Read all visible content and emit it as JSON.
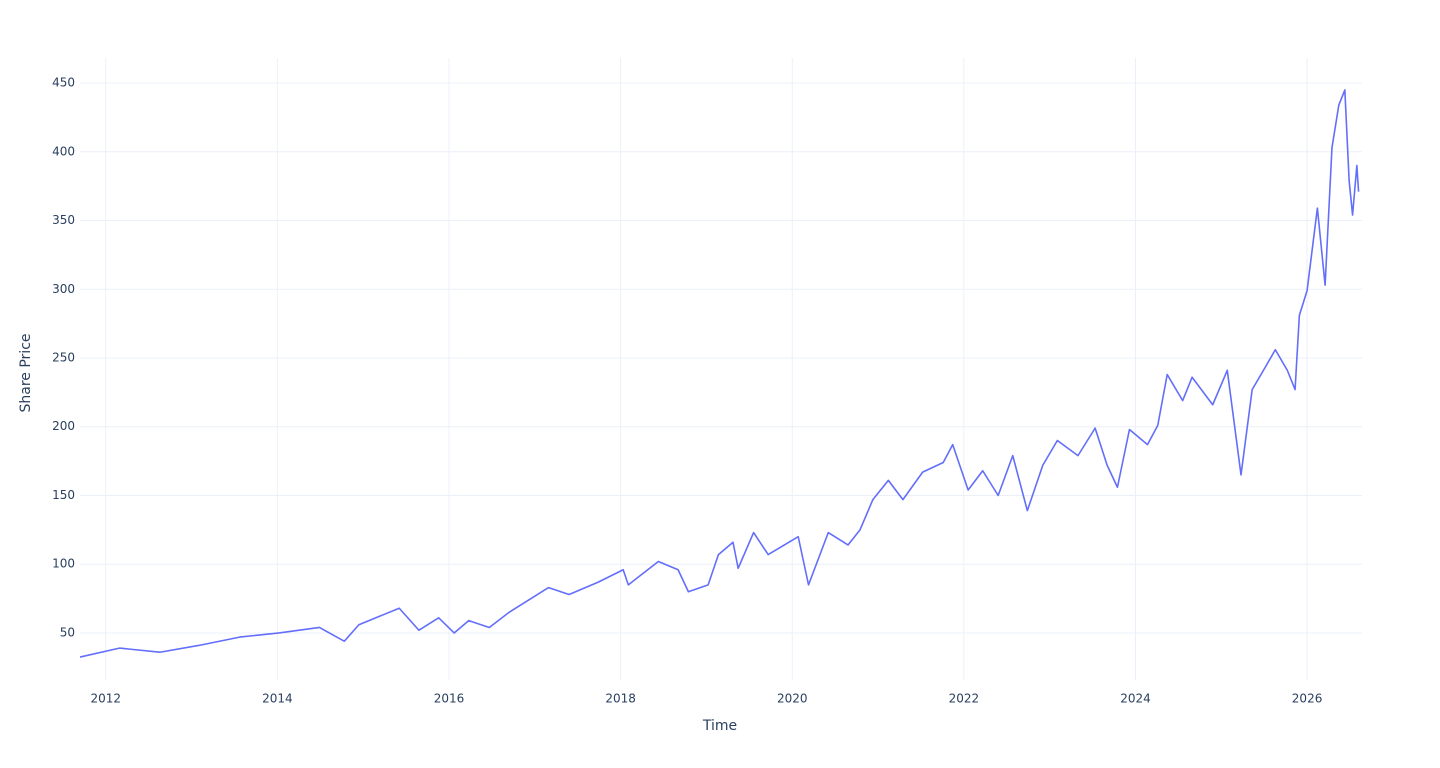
{
  "chart_data": {
    "type": "line",
    "x_label": "Time",
    "y_label": "Share Price",
    "x": [
      2011.7,
      2012.16,
      2012.63,
      2013.09,
      2013.56,
      2014.02,
      2014.49,
      2014.78,
      2014.95,
      2015.42,
      2015.65,
      2015.88,
      2016.06,
      2016.23,
      2016.47,
      2016.7,
      2016.93,
      2017.16,
      2017.4,
      2017.74,
      2018.03,
      2018.09,
      2018.44,
      2018.67,
      2018.79,
      2019.02,
      2019.14,
      2019.31,
      2019.37,
      2019.55,
      2019.72,
      2020.07,
      2020.19,
      2020.42,
      2020.65,
      2020.79,
      2020.94,
      2021.12,
      2021.29,
      2021.52,
      2021.76,
      2021.87,
      2022.05,
      2022.22,
      2022.4,
      2022.57,
      2022.74,
      2022.92,
      2023.09,
      2023.33,
      2023.53,
      2023.67,
      2023.79,
      2023.93,
      2024.14,
      2024.26,
      2024.37,
      2024.55,
      2024.66,
      2024.9,
      2025.07,
      2025.23,
      2025.36,
      2025.51,
      2025.63,
      2025.77,
      2025.86,
      2025.91,
      2026.0,
      2026.12,
      2026.21,
      2026.29,
      2026.37,
      2026.44,
      2026.49,
      2026.53,
      2026.58,
      2026.6
    ],
    "values": [
      32.5,
      39,
      36,
      41,
      47,
      50,
      54,
      44,
      56,
      68,
      52,
      61,
      50,
      59,
      54,
      65,
      74,
      83,
      78,
      87,
      96,
      85,
      102,
      96,
      80,
      85,
      107,
      116,
      97,
      123,
      107,
      120,
      85,
      123,
      114,
      125,
      147,
      161,
      147,
      167,
      174,
      187,
      154,
      168,
      150,
      179,
      139,
      172,
      190,
      179,
      199,
      172,
      156,
      198,
      187,
      201,
      238,
      219,
      236,
      216,
      241,
      165,
      227,
      243,
      256,
      241,
      227,
      281,
      299,
      359,
      303,
      403,
      434,
      445,
      379,
      354,
      390,
      371
    ],
    "color": "#636efa",
    "xlim": [
      2011.7,
      2026.64
    ],
    "xticks": [
      2012,
      2014,
      2016,
      2018,
      2020,
      2022,
      2024,
      2026
    ],
    "ylim": [
      15.8,
      468.2
    ],
    "yticks": [
      50,
      100,
      150,
      200,
      250,
      300,
      350,
      400,
      450
    ],
    "grid": true
  }
}
